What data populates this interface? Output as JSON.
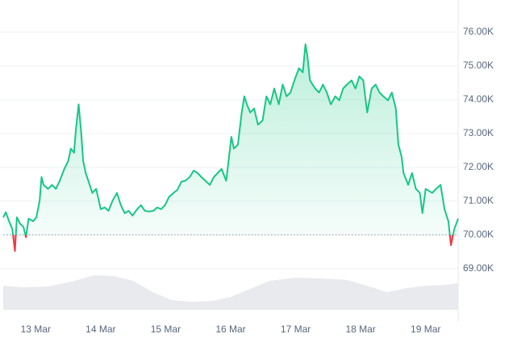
{
  "chart_data": {
    "type": "line",
    "x": [
      -0.5,
      -0.46,
      -0.41,
      -0.36,
      -0.32,
      -0.29,
      -0.24,
      -0.19,
      -0.15,
      -0.11,
      -0.04,
      0.01,
      0.06,
      0.09,
      0.12,
      0.19,
      0.25,
      0.31,
      0.37,
      0.44,
      0.5,
      0.54,
      0.59,
      0.62,
      0.66,
      0.7,
      0.73,
      0.77,
      0.81,
      0.87,
      0.93,
      1.0,
      1.06,
      1.12,
      1.18,
      1.25,
      1.31,
      1.37,
      1.43,
      1.49,
      1.56,
      1.62,
      1.68,
      1.74,
      1.81,
      1.87,
      1.93,
      1.99,
      2.05,
      2.12,
      2.18,
      2.24,
      2.3,
      2.37,
      2.43,
      2.49,
      2.55,
      2.61,
      2.68,
      2.74,
      2.8,
      2.86,
      2.93,
      2.96,
      3.01,
      3.05,
      3.11,
      3.17,
      3.21,
      3.25,
      3.3,
      3.36,
      3.42,
      3.49,
      3.55,
      3.61,
      3.67,
      3.74,
      3.8,
      3.86,
      3.92,
      3.98,
      4.05,
      4.11,
      4.15,
      4.18,
      4.22,
      4.26,
      4.3,
      4.36,
      4.42,
      4.48,
      4.54,
      4.61,
      4.67,
      4.73,
      4.79,
      4.86,
      4.92,
      4.98,
      5.04,
      5.1,
      5.17,
      5.23,
      5.29,
      5.35,
      5.42,
      5.48,
      5.54,
      5.58,
      5.63,
      5.66,
      5.73,
      5.79,
      5.85,
      5.91,
      5.95,
      6.0,
      6.1,
      6.16,
      6.23,
      6.29,
      6.35,
      6.39,
      6.44,
      6.5
    ],
    "series": [
      {
        "color": "#16c784",
        "below_color": "#ea3943",
        "values": [
          70520,
          70670,
          70400,
          70170,
          69520,
          70520,
          70330,
          70240,
          69930,
          70480,
          70400,
          70520,
          71000,
          71710,
          71480,
          71360,
          71480,
          71360,
          71600,
          71950,
          72190,
          72550,
          72430,
          73140,
          73860,
          73020,
          72190,
          71830,
          71600,
          71240,
          71360,
          70760,
          70810,
          70710,
          71000,
          71240,
          70880,
          70640,
          70710,
          70570,
          70760,
          70880,
          70710,
          70690,
          70710,
          70810,
          70760,
          70880,
          71120,
          71240,
          71330,
          71570,
          71600,
          71710,
          71900,
          71830,
          71710,
          71600,
          71480,
          71710,
          71830,
          71950,
          71600,
          72070,
          72900,
          72550,
          72670,
          73620,
          74100,
          73860,
          73620,
          73740,
          73260,
          73380,
          74100,
          73860,
          74330,
          73860,
          74450,
          74100,
          74210,
          74570,
          74930,
          74810,
          75640,
          75290,
          74570,
          74450,
          74330,
          74210,
          74450,
          74210,
          73860,
          74100,
          73980,
          74330,
          74450,
          74570,
          74330,
          74690,
          74570,
          73620,
          74330,
          74450,
          74210,
          74100,
          73980,
          74210,
          73740,
          72670,
          72310,
          71830,
          71480,
          71830,
          71360,
          71240,
          70640,
          71360,
          71240,
          71360,
          71480,
          70760,
          70400,
          69690,
          70170,
          70480
        ]
      }
    ],
    "baseline": 70000,
    "volume": {
      "color": "#e8eaee",
      "vlim": [
        0,
        50
      ],
      "x": [
        -0.5,
        -0.2,
        0.2,
        0.6,
        0.9,
        1.2,
        1.5,
        1.8,
        2.1,
        2.4,
        2.7,
        3.0,
        3.3,
        3.6,
        4.0,
        4.4,
        4.8,
        5.1,
        5.4,
        5.7,
        6.0,
        6.3,
        6.5
      ],
      "values": [
        30,
        28,
        29,
        36,
        43,
        42,
        36,
        22,
        12,
        10,
        11,
        16,
        26,
        36,
        40,
        39,
        37,
        30,
        22,
        27,
        30,
        31,
        33
      ]
    },
    "xlim": [
      -0.5,
      6.5
    ],
    "xticks": [
      {
        "value": 0,
        "label": "13 Mar"
      },
      {
        "value": 1,
        "label": "14 Mar"
      },
      {
        "value": 2,
        "label": "15 Mar"
      },
      {
        "value": 3,
        "label": "16 Mar"
      },
      {
        "value": 4,
        "label": "17 Mar"
      },
      {
        "value": 5,
        "label": "18 Mar"
      },
      {
        "value": 6,
        "label": "19 Mar"
      }
    ],
    "ylim": [
      68900,
      76950
    ],
    "yticks": [
      {
        "value": 69000,
        "label": "69.00K"
      },
      {
        "value": 70000,
        "label": "70.00K"
      },
      {
        "value": 71000,
        "label": "71.00K"
      },
      {
        "value": 72000,
        "label": "72.00K"
      },
      {
        "value": 73000,
        "label": "73.00K"
      },
      {
        "value": 74000,
        "label": "74.00K"
      },
      {
        "value": 75000,
        "label": "75.00K"
      },
      {
        "value": 76000,
        "label": "76.00K"
      }
    ],
    "grid": true
  }
}
